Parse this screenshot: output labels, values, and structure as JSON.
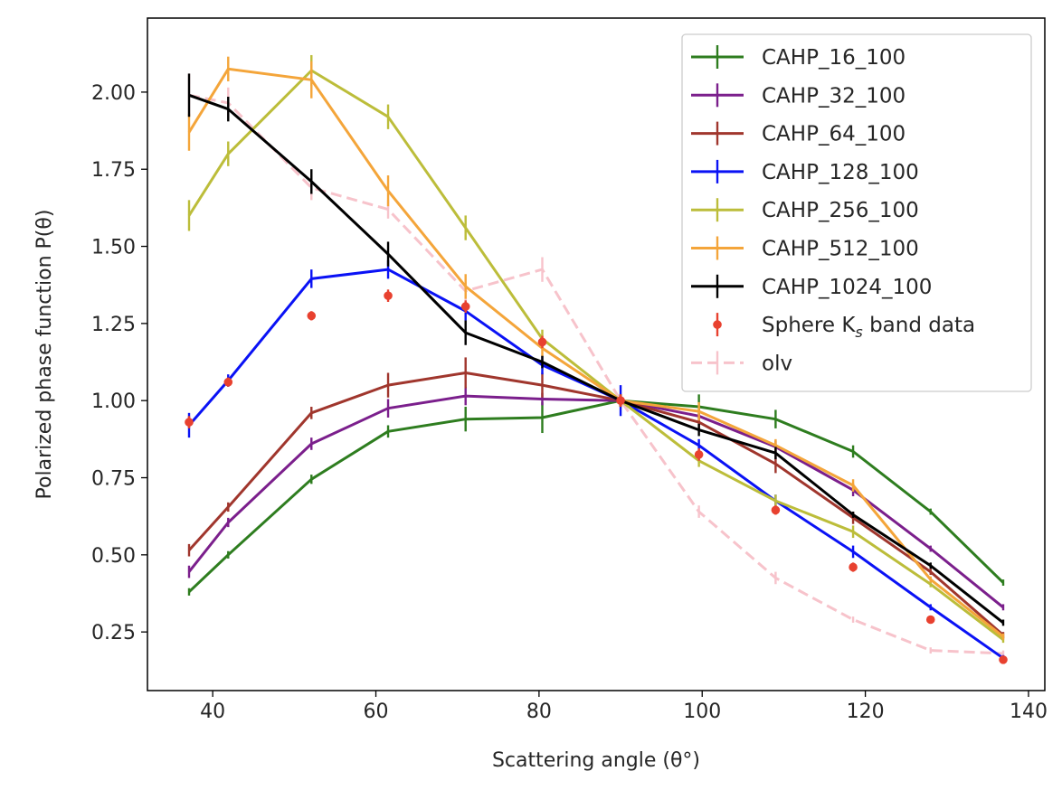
{
  "chart_data": {
    "type": "line",
    "title": "",
    "xlabel": "Scattering angle (θ°)",
    "ylabel": "Polarized phase function P(θ)",
    "xlim": [
      32,
      142
    ],
    "ylim": [
      0.06,
      2.24
    ],
    "xticks": [
      40,
      60,
      80,
      100,
      120,
      140
    ],
    "yticks": [
      0.25,
      0.5,
      0.75,
      1.0,
      1.25,
      1.5,
      1.75,
      2.0
    ],
    "ytick_labels": [
      "0.25",
      "0.50",
      "0.75",
      "1.00",
      "1.25",
      "1.50",
      "1.75",
      "2.00"
    ],
    "legend_position": "top-right",
    "x": [
      37.1,
      41.9,
      52.1,
      61.5,
      71.0,
      80.4,
      90.0,
      99.6,
      109.0,
      118.5,
      128.0,
      136.9
    ],
    "series": [
      {
        "name": "CAHP_16_100",
        "color": "#2e7d1f",
        "style": "solid",
        "values": [
          0.38,
          0.5,
          0.745,
          0.9,
          0.94,
          0.945,
          1.0,
          0.98,
          0.94,
          0.835,
          0.64,
          0.41
        ],
        "errors": [
          0.012,
          0.012,
          0.015,
          0.02,
          0.04,
          0.05,
          0.02,
          0.04,
          0.03,
          0.02,
          0.01,
          0.01
        ]
      },
      {
        "name": "CAHP_32_100",
        "color": "#7b1f8c",
        "style": "solid",
        "values": [
          0.445,
          0.605,
          0.86,
          0.975,
          1.015,
          1.005,
          1.0,
          0.95,
          0.85,
          0.71,
          0.52,
          0.33
        ],
        "errors": [
          0.02,
          0.015,
          0.02,
          0.03,
          0.03,
          0.02,
          0.02,
          0.02,
          0.02,
          0.02,
          0.01,
          0.01
        ]
      },
      {
        "name": "CAHP_64_100",
        "color": "#a0362d",
        "style": "solid",
        "values": [
          0.515,
          0.655,
          0.96,
          1.05,
          1.09,
          1.05,
          1.0,
          0.93,
          0.795,
          0.62,
          0.445,
          0.24
        ],
        "errors": [
          0.02,
          0.015,
          0.02,
          0.04,
          0.05,
          0.04,
          0.02,
          0.03,
          0.03,
          0.02,
          0.01,
          0.01
        ]
      },
      {
        "name": "CAHP_128_100",
        "color": "#0a12f5",
        "style": "solid",
        "values": [
          0.92,
          1.065,
          1.395,
          1.425,
          1.29,
          1.115,
          1.0,
          0.855,
          0.675,
          0.51,
          0.33,
          0.165
        ],
        "errors": [
          0.04,
          0.02,
          0.03,
          0.03,
          0.03,
          0.03,
          0.05,
          0.02,
          0.02,
          0.02,
          0.01,
          0.01
        ]
      },
      {
        "name": "CAHP_256_100",
        "color": "#bcbd3a",
        "style": "solid",
        "values": [
          1.6,
          1.8,
          2.07,
          1.92,
          1.56,
          1.2,
          1.0,
          0.805,
          0.675,
          0.575,
          0.405,
          0.225
        ],
        "errors": [
          0.05,
          0.04,
          0.05,
          0.04,
          0.04,
          0.03,
          0.02,
          0.02,
          0.02,
          0.02,
          0.01,
          0.01
        ]
      },
      {
        "name": "CAHP_512_100",
        "color": "#f4a53a",
        "style": "solid",
        "values": [
          1.87,
          2.075,
          2.04,
          1.68,
          1.37,
          1.17,
          1.0,
          0.965,
          0.855,
          0.725,
          0.42,
          0.235
        ],
        "errors": [
          0.06,
          0.04,
          0.06,
          0.05,
          0.04,
          0.03,
          0.02,
          0.03,
          0.02,
          0.02,
          0.01,
          0.01
        ]
      },
      {
        "name": "CAHP_1024_100",
        "color": "#000000",
        "style": "solid",
        "values": [
          1.99,
          1.945,
          1.71,
          1.475,
          1.22,
          1.125,
          1.0,
          0.905,
          0.83,
          0.63,
          0.465,
          0.28
        ],
        "errors": [
          0.07,
          0.04,
          0.04,
          0.04,
          0.04,
          0.02,
          0.02,
          0.02,
          0.02,
          0.01,
          0.01,
          0.01
        ]
      },
      {
        "name": "Sphere K$_s$ band data",
        "label_main": "Sphere K",
        "label_sub": "s",
        "label_rest": " band data",
        "color": "#e8412f",
        "style": "points",
        "values": [
          0.93,
          1.06,
          1.275,
          1.34,
          1.305,
          1.19,
          1.0,
          0.825,
          0.645,
          0.46,
          0.29,
          0.16
        ],
        "errors": [
          0.02,
          0.015,
          0.015,
          0.02,
          0.02,
          0.02,
          0.02,
          0.02,
          0.015,
          0.015,
          0.01,
          0.01
        ]
      },
      {
        "name": "olv",
        "color": "#f7c3cb",
        "style": "dashed",
        "values": [
          1.99,
          1.965,
          1.69,
          1.62,
          1.355,
          1.425,
          1.0,
          0.64,
          0.425,
          0.29,
          0.19,
          0.18
        ],
        "errors": [
          0.07,
          0.05,
          0.04,
          0.03,
          0.03,
          0.04,
          0.02,
          0.02,
          0.02,
          0.01,
          0.01,
          0.01
        ]
      }
    ]
  }
}
